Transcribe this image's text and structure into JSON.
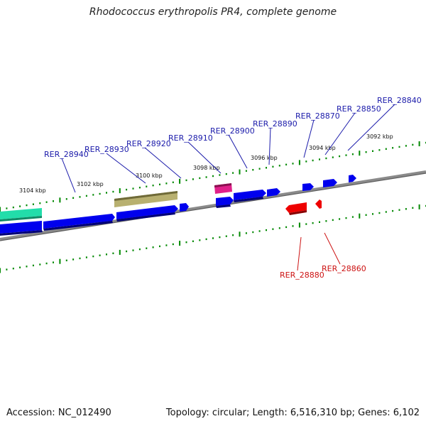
{
  "title": "Rhodococcus erythropolis PR4, complete genome",
  "footer": {
    "accession": "Accession: NC_012490",
    "stats": "Topology: circular; Length: 6,516,310 bp; Genes: 6,102"
  },
  "colors": {
    "forward_gene": "#0000ee",
    "reverse_gene": "#ee0000",
    "cyan_feature": "#22ddaa",
    "olive_feature": "#b8b070",
    "magenta_feature": "#e0208a",
    "tick": "#008800",
    "backbone": "#888888",
    "forward_label": "#1a1aaa",
    "reverse_label": "#cc1111"
  },
  "kbp_labels": [
    "3104 kbp",
    "3102 kbp",
    "3100 kbp",
    "3098 kbp",
    "3096 kbp",
    "3094 kbp",
    "3092 kbp"
  ],
  "forward_gene_labels": [
    "RER_28940",
    "RER_28930",
    "RER_28920",
    "RER_28910",
    "RER_28900",
    "RER_28890",
    "RER_28870",
    "RER_28850",
    "RER_28840"
  ],
  "reverse_gene_labels": [
    "RER_28880",
    "RER_28860"
  ]
}
